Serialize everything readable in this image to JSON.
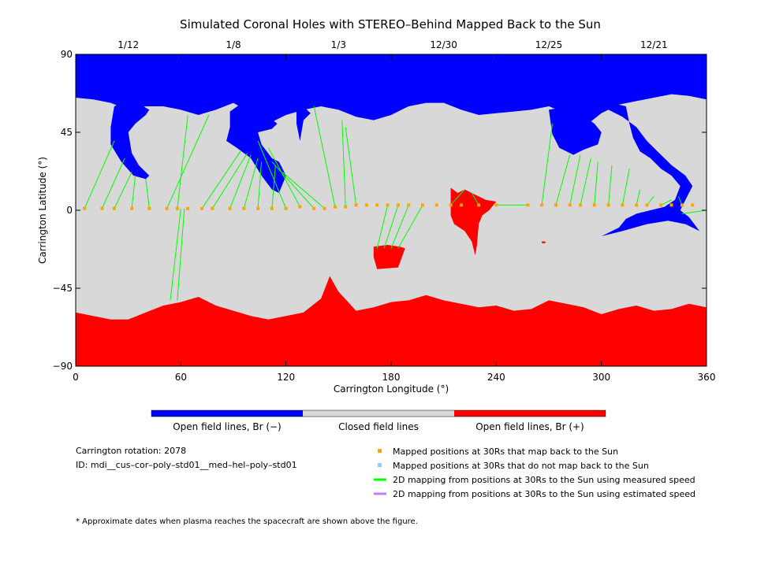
{
  "chart_data": {
    "type": "map",
    "title": "Simulated Coronal Holes with STEREO–Behind Mapped Back to the Sun",
    "xlabel": "Carrington Longitude (°)",
    "ylabel": "Carrington Latitude (°)",
    "xlim": [
      0,
      360
    ],
    "ylim": [
      -90,
      90
    ],
    "x_ticks": [
      0,
      60,
      120,
      180,
      240,
      300,
      360
    ],
    "y_ticks": [
      -90,
      -45,
      0,
      45,
      90
    ],
    "date_ticks": [
      {
        "label": "1/12",
        "lon": 30
      },
      {
        "label": "1/8",
        "lon": 90
      },
      {
        "label": "1/3",
        "lon": 150
      },
      {
        "label": "12/30",
        "lon": 210
      },
      {
        "label": "12/25",
        "lon": 270
      },
      {
        "label": "12/21",
        "lon": 330
      }
    ],
    "colors": {
      "open_negative": "#0000ff",
      "closed": "#d8d8d8",
      "open_positive": "#ff0000",
      "mapped": "#ffa500",
      "unmapped": "#87cefa",
      "measured_line": "#00ff00",
      "estimated_line": "#bf7fff"
    },
    "colorbar": [
      {
        "label": "Open field lines, Br (−)",
        "color": "#0000ff"
      },
      {
        "label": "Closed field lines",
        "color": "#d8d8d8"
      },
      {
        "label": "Open field lines, Br (+)",
        "color": "#ff0000"
      }
    ],
    "north_boundary": [
      [
        0,
        65
      ],
      [
        10,
        64
      ],
      [
        20,
        62
      ],
      [
        30,
        58
      ],
      [
        40,
        60
      ],
      [
        50,
        60
      ],
      [
        60,
        58
      ],
      [
        70,
        55
      ],
      [
        80,
        58
      ],
      [
        90,
        62
      ],
      [
        100,
        56
      ],
      [
        110,
        50
      ],
      [
        120,
        55
      ],
      [
        130,
        58
      ],
      [
        140,
        60
      ],
      [
        150,
        58
      ],
      [
        160,
        54
      ],
      [
        170,
        52
      ],
      [
        180,
        55
      ],
      [
        190,
        60
      ],
      [
        200,
        62
      ],
      [
        210,
        62
      ],
      [
        220,
        58
      ],
      [
        230,
        55
      ],
      [
        240,
        56
      ],
      [
        250,
        57
      ],
      [
        260,
        58
      ],
      [
        270,
        60
      ],
      [
        280,
        56
      ],
      [
        290,
        48
      ],
      [
        300,
        56
      ],
      [
        310,
        61
      ],
      [
        320,
        63
      ],
      [
        330,
        65
      ],
      [
        340,
        67
      ],
      [
        350,
        66
      ],
      [
        360,
        64
      ]
    ],
    "south_boundary": [
      [
        0,
        -59
      ],
      [
        10,
        -61
      ],
      [
        20,
        -63
      ],
      [
        30,
        -63
      ],
      [
        40,
        -59
      ],
      [
        50,
        -55
      ],
      [
        60,
        -53
      ],
      [
        70,
        -50
      ],
      [
        80,
        -55
      ],
      [
        90,
        -58
      ],
      [
        100,
        -61
      ],
      [
        110,
        -63
      ],
      [
        120,
        -61
      ],
      [
        130,
        -59
      ],
      [
        140,
        -51
      ],
      [
        145,
        -38
      ],
      [
        150,
        -47
      ],
      [
        160,
        -58
      ],
      [
        170,
        -56
      ],
      [
        180,
        -53
      ],
      [
        190,
        -52
      ],
      [
        200,
        -49
      ],
      [
        210,
        -52
      ],
      [
        220,
        -54
      ],
      [
        230,
        -56
      ],
      [
        240,
        -55
      ],
      [
        250,
        -58
      ],
      [
        260,
        -57
      ],
      [
        270,
        -52
      ],
      [
        280,
        -54
      ],
      [
        290,
        -56
      ],
      [
        300,
        -60
      ],
      [
        310,
        -57
      ],
      [
        320,
        -55
      ],
      [
        330,
        -58
      ],
      [
        340,
        -57
      ],
      [
        350,
        -54
      ],
      [
        360,
        -56
      ]
    ],
    "coronal_holes_negative": [
      [
        [
          22,
          60
        ],
        [
          28,
          63
        ],
        [
          35,
          62
        ],
        [
          42,
          58
        ],
        [
          40,
          55
        ],
        [
          34,
          50
        ],
        [
          30,
          45
        ],
        [
          32,
          33
        ],
        [
          36,
          26
        ],
        [
          42,
          20
        ],
        [
          40,
          18
        ],
        [
          33,
          20
        ],
        [
          26,
          28
        ],
        [
          20,
          38
        ],
        [
          20,
          48
        ]
      ],
      [
        [
          88,
          57
        ],
        [
          95,
          62
        ],
        [
          102,
          60
        ],
        [
          110,
          54
        ],
        [
          115,
          50
        ],
        [
          112,
          47
        ],
        [
          104,
          45
        ],
        [
          106,
          38
        ],
        [
          112,
          30
        ],
        [
          116,
          28
        ],
        [
          120,
          20
        ],
        [
          116,
          10
        ],
        [
          112,
          12
        ],
        [
          106,
          20
        ],
        [
          100,
          30
        ],
        [
          92,
          36
        ],
        [
          86,
          40
        ],
        [
          88,
          48
        ]
      ],
      [
        [
          126,
          58
        ],
        [
          130,
          60
        ],
        [
          134,
          56
        ],
        [
          130,
          52
        ],
        [
          128,
          40
        ],
        [
          126,
          50
        ]
      ],
      [
        [
          270,
          58
        ],
        [
          280,
          60
        ],
        [
          288,
          56
        ],
        [
          296,
          50
        ],
        [
          300,
          45
        ],
        [
          298,
          38
        ],
        [
          290,
          35
        ],
        [
          284,
          32
        ],
        [
          276,
          36
        ],
        [
          272,
          44
        ]
      ],
      [
        [
          298,
          56
        ],
        [
          306,
          62
        ],
        [
          314,
          60
        ],
        [
          316,
          50
        ],
        [
          318,
          42
        ],
        [
          322,
          34
        ],
        [
          328,
          30
        ],
        [
          334,
          24
        ],
        [
          340,
          20
        ],
        [
          345,
          14
        ],
        [
          342,
          6
        ],
        [
          336,
          2
        ],
        [
          328,
          0
        ],
        [
          320,
          -2
        ],
        [
          314,
          -5
        ],
        [
          310,
          -10
        ],
        [
          300,
          -15
        ],
        [
          312,
          -12
        ],
        [
          326,
          -8
        ],
        [
          338,
          -6
        ],
        [
          348,
          -8
        ],
        [
          356,
          -12
        ],
        [
          350,
          -4
        ],
        [
          345,
          0
        ],
        [
          348,
          6
        ],
        [
          352,
          14
        ],
        [
          348,
          20
        ],
        [
          340,
          26
        ],
        [
          332,
          34
        ],
        [
          326,
          40
        ],
        [
          320,
          48
        ],
        [
          312,
          54
        ],
        [
          304,
          58
        ]
      ]
    ],
    "coronal_holes_positive": [
      [
        [
          170,
          -21
        ],
        [
          178,
          -20
        ],
        [
          185,
          -21
        ],
        [
          188,
          -22
        ],
        [
          184,
          -33
        ],
        [
          172,
          -34
        ],
        [
          170,
          -27
        ]
      ],
      [
        [
          214,
          13
        ],
        [
          218,
          10
        ],
        [
          222,
          12
        ],
        [
          228,
          9
        ],
        [
          234,
          6
        ],
        [
          240,
          5
        ],
        [
          236,
          0
        ],
        [
          232,
          -3
        ],
        [
          230,
          -8
        ],
        [
          229,
          -20
        ],
        [
          228,
          -26
        ],
        [
          226,
          -18
        ],
        [
          222,
          -12
        ],
        [
          216,
          -8
        ],
        [
          214,
          -3
        ],
        [
          214,
          6
        ]
      ],
      [
        [
          266,
          -18
        ],
        [
          268,
          -18
        ],
        [
          268,
          -19
        ],
        [
          266,
          -19
        ]
      ]
    ],
    "mapped_points": [
      [
        5,
        1
      ],
      [
        15,
        1
      ],
      [
        22,
        1
      ],
      [
        32,
        1
      ],
      [
        42,
        1
      ],
      [
        52,
        1
      ],
      [
        58,
        1
      ],
      [
        64,
        1
      ],
      [
        72,
        1
      ],
      [
        78,
        1
      ],
      [
        88,
        1
      ],
      [
        96,
        1
      ],
      [
        104,
        1
      ],
      [
        112,
        1
      ],
      [
        120,
        1
      ],
      [
        128,
        2
      ],
      [
        136,
        1
      ],
      [
        142,
        1
      ],
      [
        148,
        2
      ],
      [
        154,
        2
      ],
      [
        160,
        3
      ],
      [
        166,
        3
      ],
      [
        172,
        3
      ],
      [
        178,
        3
      ],
      [
        184,
        3
      ],
      [
        190,
        3
      ],
      [
        198,
        3
      ],
      [
        206,
        3
      ],
      [
        214,
        3
      ],
      [
        220,
        3
      ],
      [
        230,
        3
      ],
      [
        240,
        3
      ],
      [
        258,
        3
      ],
      [
        266,
        3
      ],
      [
        274,
        3
      ],
      [
        282,
        3
      ],
      [
        288,
        3
      ],
      [
        296,
        3
      ],
      [
        304,
        3
      ],
      [
        312,
        3
      ],
      [
        320,
        3
      ],
      [
        326,
        3
      ],
      [
        334,
        3
      ],
      [
        340,
        3
      ],
      [
        346,
        3
      ],
      [
        352,
        3
      ]
    ],
    "measured_mappings": [
      {
        "from": [
          5,
          1
        ],
        "to": [
          22,
          40
        ]
      },
      {
        "from": [
          15,
          1
        ],
        "to": [
          28,
          30
        ]
      },
      {
        "from": [
          22,
          1
        ],
        "to": [
          32,
          22
        ]
      },
      {
        "from": [
          32,
          1
        ],
        "to": [
          34,
          20
        ]
      },
      {
        "from": [
          42,
          1
        ],
        "to": [
          40,
          18
        ]
      },
      {
        "from": [
          52,
          1
        ],
        "to": [
          76,
          55
        ]
      },
      {
        "from": [
          58,
          1
        ],
        "to": [
          64,
          55
        ]
      },
      {
        "from": [
          58,
          -52
        ],
        "to": [
          62,
          1
        ]
      },
      {
        "from": [
          54,
          -52
        ],
        "to": [
          60,
          1
        ]
      },
      {
        "from": [
          72,
          1
        ],
        "to": [
          94,
          34
        ]
      },
      {
        "from": [
          78,
          1
        ],
        "to": [
          98,
          33
        ]
      },
      {
        "from": [
          88,
          1
        ],
        "to": [
          100,
          32
        ]
      },
      {
        "from": [
          96,
          1
        ],
        "to": [
          104,
          30
        ]
      },
      {
        "from": [
          104,
          1
        ],
        "to": [
          106,
          28
        ]
      },
      {
        "from": [
          112,
          1
        ],
        "to": [
          114,
          26
        ]
      },
      {
        "from": [
          120,
          1
        ],
        "to": [
          104,
          40
        ]
      },
      {
        "from": [
          128,
          2
        ],
        "to": [
          110,
          36
        ]
      },
      {
        "from": [
          136,
          1
        ],
        "to": [
          112,
          28
        ]
      },
      {
        "from": [
          142,
          1
        ],
        "to": [
          118,
          22
        ]
      },
      {
        "from": [
          148,
          2
        ],
        "to": [
          136,
          60
        ]
      },
      {
        "from": [
          154,
          2
        ],
        "to": [
          152,
          52
        ]
      },
      {
        "from": [
          160,
          3
        ],
        "to": [
          154,
          48
        ]
      },
      {
        "from": [
          172,
          -22
        ],
        "to": [
          178,
          3
        ]
      },
      {
        "from": [
          176,
          -22
        ],
        "to": [
          184,
          3
        ]
      },
      {
        "from": [
          180,
          -22
        ],
        "to": [
          190,
          3
        ]
      },
      {
        "from": [
          184,
          -22
        ],
        "to": [
          198,
          3
        ]
      },
      {
        "from": [
          222,
          12
        ],
        "to": [
          214,
          3
        ]
      },
      {
        "from": [
          226,
          10
        ],
        "to": [
          230,
          3
        ]
      },
      {
        "from": [
          240,
          3
        ],
        "to": [
          258,
          3
        ]
      },
      {
        "from": [
          266,
          3
        ],
        "to": [
          272,
          50
        ]
      },
      {
        "from": [
          274,
          3
        ],
        "to": [
          282,
          32
        ]
      },
      {
        "from": [
          282,
          3
        ],
        "to": [
          288,
          32
        ]
      },
      {
        "from": [
          288,
          3
        ],
        "to": [
          294,
          30
        ]
      },
      {
        "from": [
          296,
          3
        ],
        "to": [
          298,
          28
        ]
      },
      {
        "from": [
          304,
          3
        ],
        "to": [
          306,
          26
        ]
      },
      {
        "from": [
          312,
          3
        ],
        "to": [
          316,
          24
        ]
      },
      {
        "from": [
          320,
          3
        ],
        "to": [
          322,
          12
        ]
      },
      {
        "from": [
          326,
          3
        ],
        "to": [
          330,
          8
        ]
      },
      {
        "from": [
          334,
          3
        ],
        "to": [
          340,
          6
        ]
      },
      {
        "from": [
          346,
          3
        ],
        "to": [
          344,
          8
        ]
      },
      {
        "from": [
          346,
          -2
        ],
        "to": [
          360,
          0
        ]
      }
    ],
    "legend": [
      {
        "kind": "point",
        "color": "#ffa500",
        "label": "Mapped positions at 30Rs that map back to the Sun"
      },
      {
        "kind": "point",
        "color": "#87cefa",
        "label": "Mapped positions at 30Rs that do not map back to the Sun"
      },
      {
        "kind": "line",
        "color": "#00ff00",
        "label": "2D mapping from positions at 30Rs to the Sun using measured speed"
      },
      {
        "kind": "line",
        "color": "#bf7fff",
        "label": "2D mapping from positions at 30Rs to the Sun using estimated speed"
      }
    ],
    "legend_position": "bottom-right",
    "carrington_rotation": "Carrington rotation: 2078",
    "model_id": "ID: mdi__cus–cor–poly–std01__med–hel–poly–std01",
    "footnote": "* Approximate dates when plasma reaches the spacecraft are shown above the figure."
  }
}
